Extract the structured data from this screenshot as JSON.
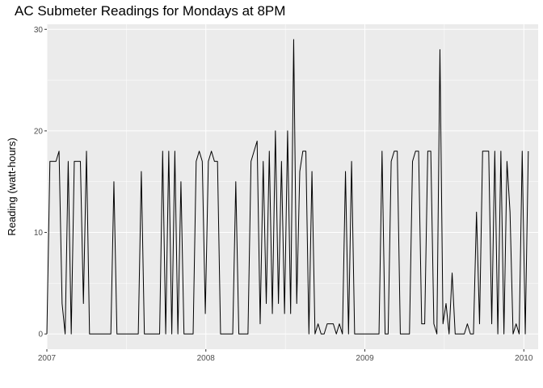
{
  "chart_data": {
    "type": "line",
    "title": "AC Submeter Readings for Mondays at 8PM",
    "xlabel": "",
    "ylabel": "Reading (watt-hours)",
    "xlim": [
      2007.0,
      2010.09
    ],
    "ylim": [
      -1.5,
      30.5
    ],
    "x_ticks": [
      2007,
      2008,
      2009,
      2010
    ],
    "x_tick_labels": [
      "2007",
      "2008",
      "2009",
      "2010"
    ],
    "y_ticks": [
      0,
      10,
      20,
      30
    ],
    "y_tick_labels": [
      "0",
      "10",
      "20",
      "30"
    ],
    "grid": true,
    "background": "#ebebeb",
    "line_color": "#000000",
    "series": [
      {
        "x_start": 2007.0,
        "x_step_weeks": 1,
        "values": [
          0,
          17,
          17,
          17,
          18,
          3,
          0,
          17,
          0,
          17,
          17,
          17,
          3,
          18,
          0,
          0,
          0,
          0,
          0,
          0,
          0,
          0,
          15,
          0,
          0,
          0,
          0,
          0,
          0,
          0,
          0,
          16,
          0,
          0,
          0,
          0,
          0,
          0,
          18,
          0,
          18,
          0,
          18,
          0,
          15,
          0,
          0,
          0,
          0,
          17,
          18,
          17,
          2,
          17,
          18,
          17,
          17,
          0,
          0,
          0,
          0,
          0,
          15,
          0,
          0,
          0,
          0,
          17,
          18,
          19,
          1,
          17,
          3,
          18,
          2,
          20,
          3,
          17,
          2,
          20,
          2,
          29,
          3,
          16,
          18,
          18,
          0,
          16,
          0,
          1,
          0,
          0,
          1,
          1,
          1,
          0,
          1,
          0,
          16,
          0,
          17,
          0,
          0,
          0,
          0,
          0,
          0,
          0,
          0,
          0,
          18,
          0,
          0,
          17,
          18,
          18,
          0,
          0,
          0,
          0,
          17,
          18,
          18,
          1,
          1,
          18,
          18,
          1,
          0,
          28,
          1,
          3,
          0,
          6,
          0,
          0,
          0,
          0,
          1,
          0,
          0,
          12,
          1,
          18,
          18,
          18,
          1,
          18,
          0,
          18,
          0,
          17,
          12,
          0,
          1,
          0,
          18,
          0,
          18
        ]
      }
    ]
  }
}
